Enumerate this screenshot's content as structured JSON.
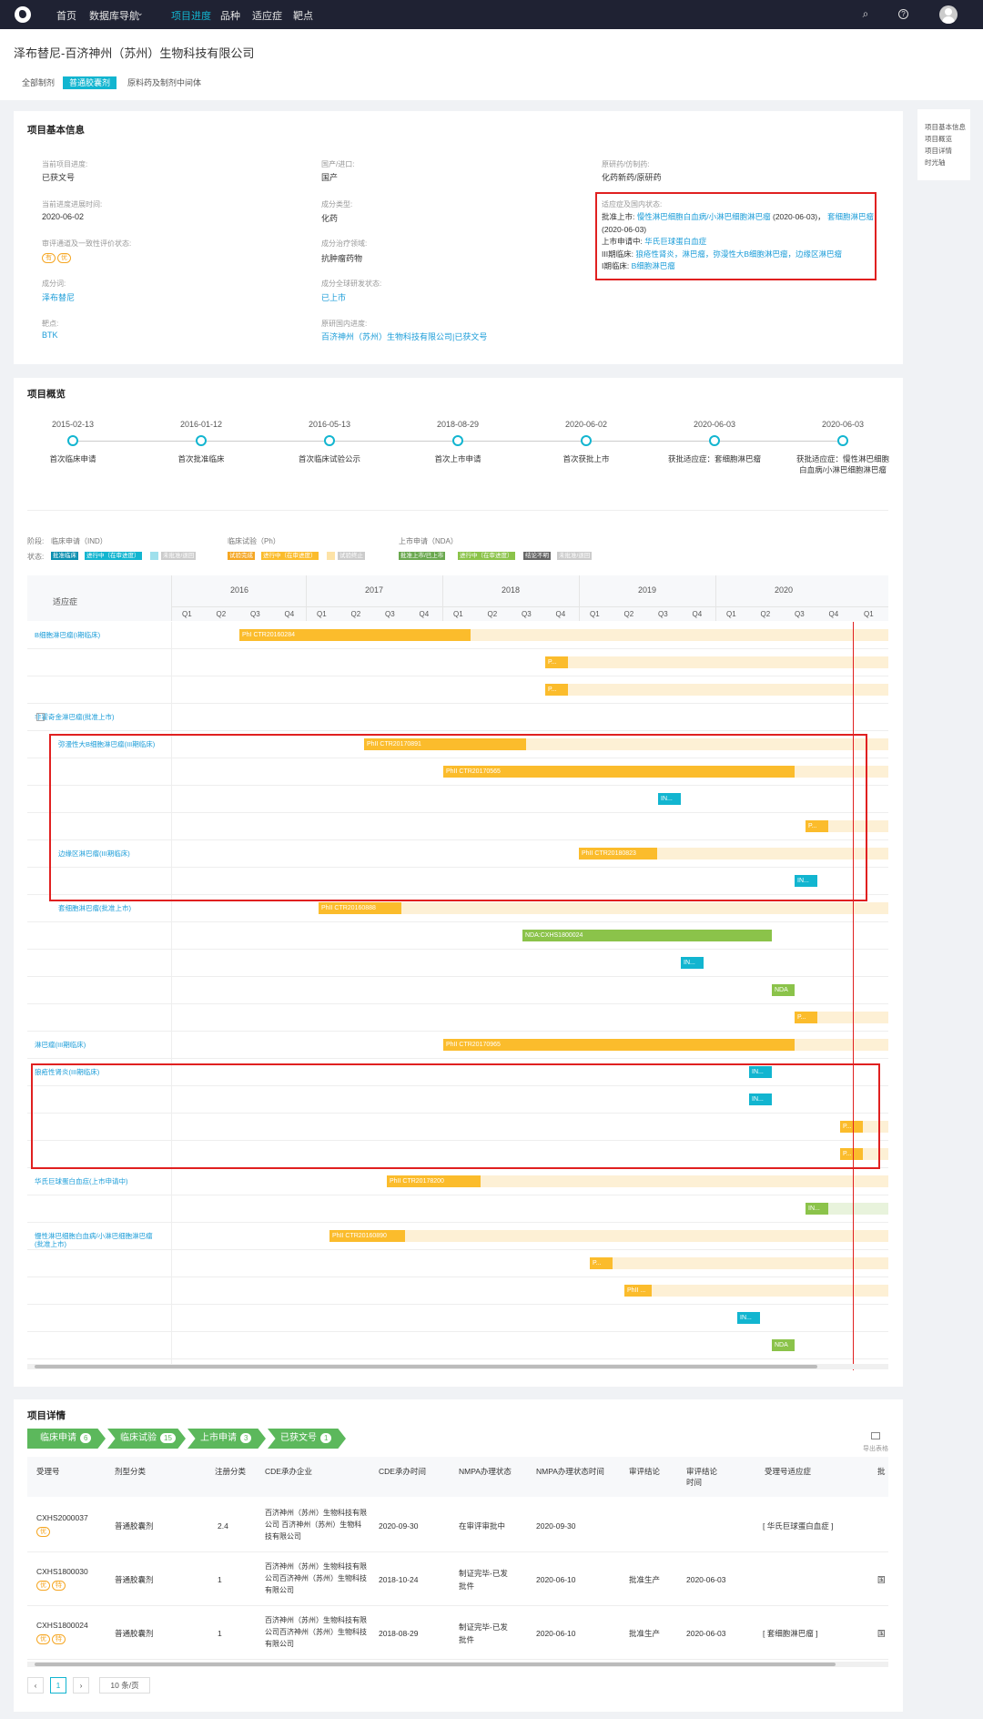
{
  "topnav": {
    "home": "首页",
    "db": "数据库导航",
    "db_arrow": "⌄",
    "progress": "项目进度",
    "variety": "品种",
    "indication": "适应症",
    "target": "靶点",
    "search_icon": "⌕",
    "help_icon": "?"
  },
  "page_title": "泽布替尼-百济神州（苏州）生物科技有限公司",
  "tabs": [
    "全部制剂",
    "普通胶囊剂",
    "原料药及制剂中间体"
  ],
  "basic": {
    "title": "项目基本信息",
    "cur_progress_label": "当前项目进度:",
    "cur_progress": "已获文号",
    "domestic_label": "国产/进口:",
    "domestic": "国产",
    "orig_label": "原研药/仿制药:",
    "orig": "化药新药/原研药",
    "time_label": "当前进度进展时间:",
    "time": "2020-06-02",
    "comp_type_label": "成分类型:",
    "comp_type": "化药",
    "ind_label": "适应症及国内状态:",
    "approved_label": "批准上市:",
    "approved_link": "慢性淋巴细胞白血病/小淋巴细胞淋巴瘤",
    "approved_date1": "(2020-06-03)，",
    "approved_link2": "套细胞淋巴瘤",
    "approved_date2": "(2020-06-03)",
    "nda_label": "上市申请中:",
    "nda_link": "华氏巨球蛋白血症",
    "p3_label": "III期临床:",
    "p3_link": "狼疮性肾炎，淋巴瘤，弥漫性大B细胞淋巴瘤，边缘区淋巴瘤",
    "p1_label": "I期临床:",
    "p1_link": "B细胞淋巴瘤",
    "review_label": "审评通道及一致性评价状态:",
    "review_badges": [
      "有",
      "优"
    ],
    "field_label": "成分治疗领域:",
    "field": "抗肿瘤药物",
    "ingredient_label": "成分词:",
    "ingredient": "泽布替尼",
    "global_label": "成分全球研发状态:",
    "global": "已上市",
    "target_label": "靶点:",
    "target": "BTK",
    "orig_prog_label": "原研国内进度:",
    "orig_prog": "百济神州（苏州）生物科技有限公司|已获文号"
  },
  "overview": {
    "title": "项目概览",
    "events": [
      {
        "date": "2015-02-13",
        "text": "首次临床申请"
      },
      {
        "date": "2016-01-12",
        "text": "首次批准临床"
      },
      {
        "date": "2016-05-13",
        "text": "首次临床试验公示"
      },
      {
        "date": "2018-08-29",
        "text": "首次上市申请"
      },
      {
        "date": "2020-06-02",
        "text": "首次获批上市"
      },
      {
        "date": "2020-06-03",
        "text": "获批适应症：套细胞淋巴瘤"
      },
      {
        "date": "2020-06-03",
        "text": "获批适应症：慢性淋巴细胞白血病/小淋巴细胞淋巴瘤"
      }
    ]
  },
  "legend": {
    "stage_label": "阶段:",
    "status_label": "状态:",
    "ind_title": "临床申请（IND）",
    "ph_title": "临床试验（Ph）",
    "nda_title": "上市申请（NDA）",
    "ind_items": [
      {
        "t": "批准临床",
        "c": "#0a8fb0"
      },
      {
        "t": "进行中（在审进度）",
        "c": "#12b5d0"
      },
      {
        "t": "",
        "c": "#9fe0ec"
      },
      {
        "t": "未批准/退回",
        "c": "#ccc"
      }
    ],
    "ph_items": [
      {
        "t": "试验完成",
        "c": "#f5a623"
      },
      {
        "t": "进行中（在审进度）",
        "c": "#fbbc2c"
      },
      {
        "t": "",
        "c": "#fde3a7"
      },
      {
        "t": "试验终止",
        "c": "#ccc"
      }
    ],
    "nda_items": [
      {
        "t": "批准上市/已上市",
        "c": "#6aa84f"
      },
      {
        "t": "进行中（在审进度）",
        "c": "#8bc34a"
      },
      {
        "t": "结论不明",
        "c": "#666"
      },
      {
        "t": "未批准/退回",
        "c": "#ccc"
      }
    ]
  },
  "gantt": {
    "ind_header": "适应症",
    "years": [
      "2016",
      "2017",
      "2018",
      "2019",
      "2020"
    ],
    "quarters": [
      "Q1",
      "Q2",
      "Q3",
      "Q4"
    ],
    "labels": [
      "B细胞淋巴瘤(I期临床)",
      "非霍奇金淋巴瘤(批准上市)",
      "弥漫性大B细胞淋巴瘤(III期临床)",
      "边缘区淋巴瘤(III期临床)",
      "套细胞淋巴瘤(批准上市)",
      "淋巴瘤(III期临床)",
      "狼疮性肾炎(III期临床)",
      "华氏巨球蛋白血症(上市申请中)",
      "慢性淋巴细胞白血病/小淋巴细胞淋巴瘤(批准上市)"
    ],
    "bars": [
      "PhI CTR20160284",
      "P...",
      "P...",
      "PhII CTR20170891",
      "PhII CTR20170565",
      "IN...",
      "P...",
      "PhII CTR20180823",
      "IN...",
      "PhII CTR20160888",
      "NDA:CXHS1800024",
      "IN...",
      "NDA",
      "P...",
      "PhII CTR20170965",
      "IN...",
      "IN...",
      "P...",
      "P...",
      "PhII CTR20178200",
      "IN...",
      "PhII CTR20160890",
      "P...",
      "PhII ...",
      "IN...",
      "NDA"
    ]
  },
  "details": {
    "title": "项目详情",
    "stages": [
      {
        "t": "临床申请",
        "n": "6"
      },
      {
        "t": "临床试验",
        "n": "15"
      },
      {
        "t": "上市申请",
        "n": "3"
      },
      {
        "t": "已获文号",
        "n": "1"
      }
    ],
    "export": "导出表格",
    "headers": [
      "受理号",
      "剂型分类",
      "注册分类",
      "CDE承办企业",
      "CDE承办时间",
      "NMPA办理状态",
      "NMPA办理状态时间",
      "审评结论",
      "审评结论时间",
      "受理号适应症",
      "批"
    ],
    "rows": [
      {
        "no": "CXHS2000037",
        "badges": [
          "优"
        ],
        "form": "普通胶囊剂",
        "reg": "2.4",
        "company": "百济神州（苏州）生物科技有限公司 百济神州（苏州）生物科技有限公司",
        "cde_time": "2020-09-30",
        "status": "在审评审批中",
        "status_time": "2020-09-30",
        "conclusion": "",
        "concl_time": "",
        "ind": "[ 华氏巨球蛋白血症 ]",
        "pi": ""
      },
      {
        "no": "CXHS1800030",
        "badges": [
          "优",
          "特"
        ],
        "form": "普通胶囊剂",
        "reg": "1",
        "company": "百济神州（苏州）生物科技有限公司百济神州（苏州）生物科技有限公司",
        "cde_time": "2018-10-24",
        "status": "制证完毕-已发批件",
        "status_time": "2020-06-10",
        "conclusion": "批准生产",
        "concl_time": "2020-06-03",
        "ind": "",
        "pi": "国"
      },
      {
        "no": "CXHS1800024",
        "badges": [
          "优",
          "特"
        ],
        "form": "普通胶囊剂",
        "reg": "1",
        "company": "百济神州（苏州）生物科技有限公司百济神州（苏州）生物科技有限公司",
        "cde_time": "2018-08-29",
        "status": "制证完毕-已发批件",
        "status_time": "2020-06-10",
        "conclusion": "批准生产",
        "concl_time": "2020-06-03",
        "ind": "[ 套细胞淋巴瘤 ]",
        "pi": "国"
      }
    ],
    "pager": {
      "prev": "‹",
      "page": "1",
      "next": "›",
      "size": "10 条/页"
    }
  },
  "side": [
    "项目基本信息",
    "项目概览",
    "项目详情",
    "时光轴"
  ]
}
